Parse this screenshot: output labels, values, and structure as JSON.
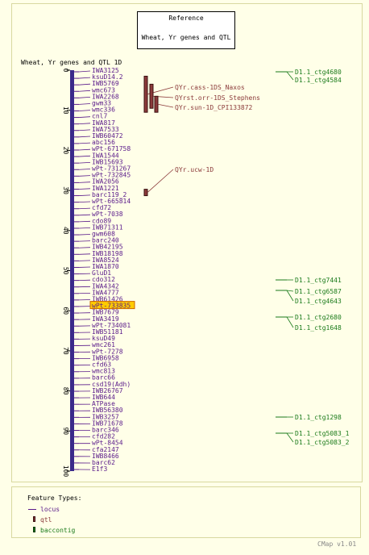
{
  "reference": {
    "heading": "Reference",
    "subtitle": "Wheat, Yr genes and QTL"
  },
  "map_title": "Wheat, Yr genes and QTL 1D",
  "axis": {
    "min": 0,
    "max": 100,
    "ticks": [
      0,
      10,
      20,
      30,
      40,
      50,
      60,
      70,
      80,
      90,
      100
    ]
  },
  "colors": {
    "locus": "#5a1a8a",
    "qtl": "#8b3a3a",
    "bac": "#1a7a1a",
    "bar": "#3a2a8a",
    "highlight": "#ffcc00"
  },
  "highlighted_marker": "wPt-733835",
  "loci": [
    "IWA3125",
    "ksuD14.2",
    "IWB5769",
    "wmc673",
    "IWA2268",
    "gwm33",
    "wmc336",
    "cnl7",
    "IWA817",
    "IWA7533",
    "IWB60472",
    "abc156",
    "wPt-671758",
    "IWA1544",
    "IWB15693",
    "wPt-731267",
    "wPt-732845",
    "IWA2056",
    "IWA1221",
    "barc119_2",
    "wPt-665814",
    "cfd72",
    "wPt-7038",
    "cdo89",
    "IWB71311",
    "gwm608",
    "barc240",
    "IWB42195",
    "IWB18198",
    "IWA8524",
    "IWA1870",
    "GluD1",
    "cdo312",
    "IWA4342",
    "IWA4777",
    "IWB61426",
    "wPt-733835",
    "IWB7679",
    "IWA3419",
    "wPt-734081",
    "IWB51181",
    "ksuD49",
    "wmc261",
    "wPt-7278",
    "IWB6958",
    "cfd63",
    "wmc813",
    "barc66",
    "csd19(Adh)",
    "IWB26767",
    "IWB644",
    "ATPase",
    "IWB56380",
    "IWB3257",
    "IWB71678",
    "barc346",
    "cfd282",
    "wPt-8454",
    "cfa2147",
    "IWB8466",
    "barc62",
    "E1f3"
  ],
  "qtls": [
    "QYr.cass-1DS_Naxos",
    "QYrst.orr-1DS_Stephens",
    "QYr.sun-1D_CPI133872",
    "QYr.ucw-1D"
  ],
  "baccontigs": [
    "D1.1_ctg4680",
    "D1.1_ctg4584",
    "D1.1_ctg7441",
    "D1.1_ctg6587",
    "D1.1_ctg4643",
    "D1.1_ctg2680",
    "D1.1_ctg1648",
    "D1.1_ctg1298",
    "D1.1_ctg5083_1",
    "D1.1_ctg5083_2"
  ],
  "legend": {
    "title": "Feature Types:",
    "items": [
      "locus",
      "qtl",
      "baccontig"
    ]
  },
  "footer": "CMap v1.01"
}
